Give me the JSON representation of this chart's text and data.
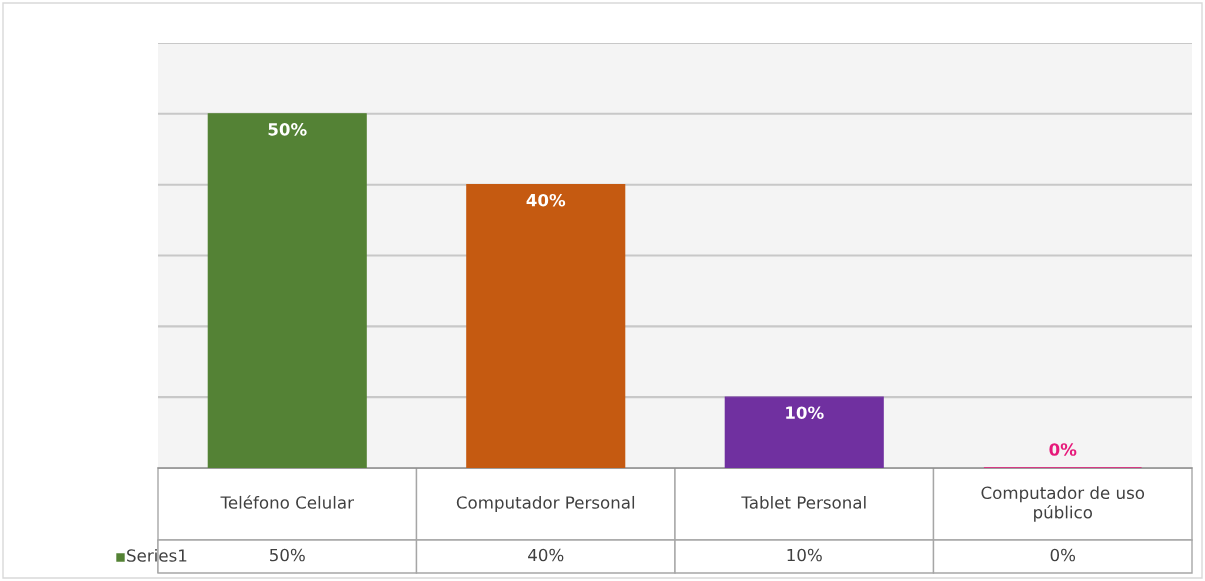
{
  "chart_data": {
    "type": "bar",
    "categories": [
      "Teléfono Celular",
      "Computador Personal",
      "Tablet Personal",
      "Computador de uso\npúblico"
    ],
    "series": [
      {
        "name": "Series1",
        "color": "#548235",
        "colors": [
          "#548235",
          "#c55a11",
          "#7030a0",
          "#e6197a"
        ],
        "values": [
          50,
          40,
          10,
          0
        ],
        "value_labels": [
          "50%",
          "40%",
          "10%",
          "0%"
        ]
      }
    ],
    "ylim": [
      0,
      60
    ],
    "yticks": [
      {
        "value": 0,
        "label": null
      },
      {
        "value": 10,
        "label": null
      },
      {
        "value": 20,
        "label": null
      },
      {
        "value": 30,
        "label": null
      },
      {
        "value": 40,
        "label": null
      },
      {
        "value": 50,
        "label": null
      },
      {
        "value": 60,
        "label": null
      }
    ],
    "grid": "y",
    "legend": "bottom",
    "tick_labels": "x"
  }
}
